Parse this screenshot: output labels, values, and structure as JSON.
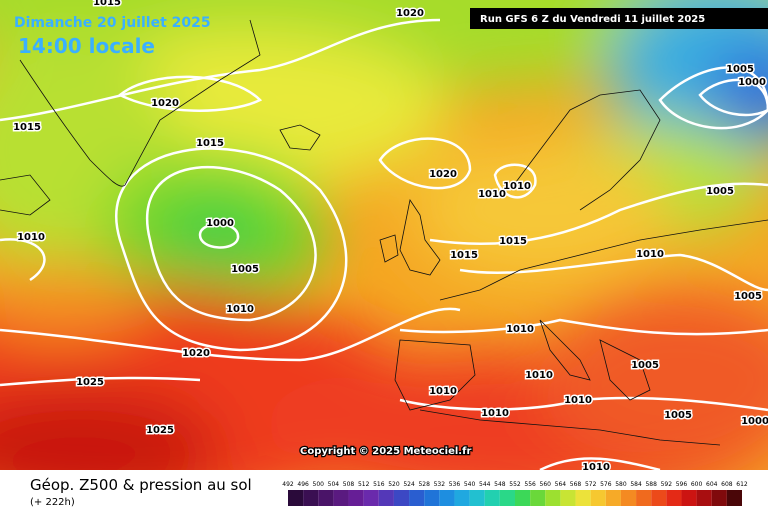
{
  "header": {
    "date": "Dimanche 20 juillet 2025",
    "time": "14:00 locale",
    "run": "Run GFS 6 Z du Vendredi 11 juillet 2025"
  },
  "isobar_labels": [
    "1015",
    "1020",
    "1005",
    "1000",
    "1020",
    "1015",
    "1015",
    "1020",
    "1010",
    "1010",
    "1005",
    "1000",
    "1010",
    "1015",
    "1015",
    "1005",
    "1010",
    "1005",
    "1010",
    "1010",
    "1020",
    "1005",
    "1010",
    "1025",
    "1010",
    "1010",
    "1010",
    "1005",
    "1025",
    "1000",
    "1010"
  ],
  "copyright": "Copyright © 2025 Meteociel.fr",
  "footer": {
    "title": "Géop. Z500 & pression au sol",
    "lead": "(+ 222h)"
  },
  "legend": {
    "values": [
      492,
      496,
      500,
      504,
      508,
      512,
      516,
      520,
      524,
      528,
      532,
      536,
      540,
      544,
      548,
      552,
      556,
      560,
      564,
      568,
      572,
      576,
      580,
      584,
      588,
      592,
      596,
      600,
      604,
      608,
      612
    ]
  }
}
